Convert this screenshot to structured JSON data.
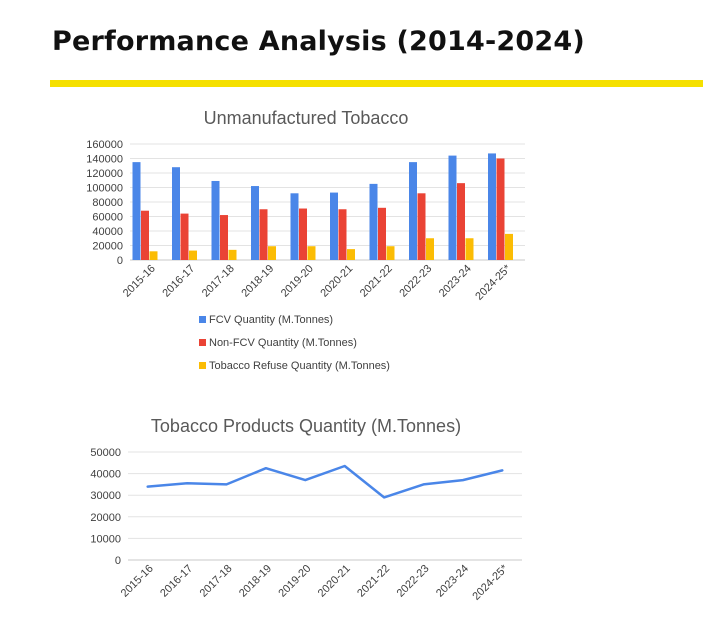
{
  "page": {
    "title": "Performance Analysis (2014-2024)",
    "accent_color": "#f5e000"
  },
  "chart_data": [
    {
      "type": "bar",
      "title": "Unmanufactured Tobacco",
      "categories": [
        "2015-16",
        "2016-17",
        "2017-18",
        "2018-19",
        "2019-20",
        "2020-21",
        "2021-22",
        "2022-23",
        "2023-24",
        "2024-25*"
      ],
      "series": [
        {
          "name": "FCV Quantity (M.Tonnes)",
          "color": "#4a86e8",
          "values": [
            135000,
            128000,
            109000,
            102000,
            92000,
            93000,
            105000,
            135000,
            144000,
            147000
          ]
        },
        {
          "name": "Non-FCV Quantity (M.Tonnes)",
          "color": "#ea4335",
          "values": [
            68000,
            64000,
            62000,
            70000,
            71000,
            70000,
            72000,
            92000,
            106000,
            140000
          ]
        },
        {
          "name": "Tobacco Refuse Quantity (M.Tonnes)",
          "color": "#fbbc04",
          "values": [
            12000,
            13000,
            14000,
            19000,
            19000,
            15000,
            19000,
            30000,
            30000,
            36000
          ]
        }
      ],
      "yticks": [
        "0",
        "20000",
        "40000",
        "60000",
        "80000",
        "100000",
        "120000",
        "140000",
        "160000"
      ],
      "ylim": [
        0,
        160000
      ],
      "grid": true,
      "legend": "bottom"
    },
    {
      "type": "line",
      "title": "Tobacco Products Quantity (M.Tonnes)",
      "categories": [
        "2015-16",
        "2016-17",
        "2017-18",
        "2018-19",
        "2019-20",
        "2020-21",
        "2021-22",
        "2022-23",
        "2023-24",
        "2024-25*"
      ],
      "series": [
        {
          "color": "#4a86e8",
          "values": [
            34000,
            35500,
            35000,
            42500,
            37000,
            43500,
            29000,
            35000,
            37000,
            41500
          ]
        }
      ],
      "yticks": [
        "0",
        "10000",
        "20000",
        "30000",
        "40000",
        "50000"
      ],
      "ylim": [
        0,
        50000
      ],
      "grid": true
    }
  ]
}
